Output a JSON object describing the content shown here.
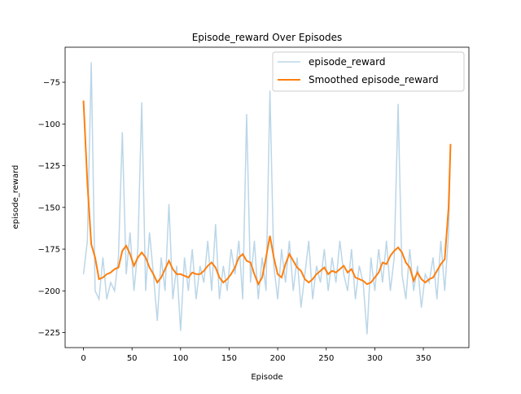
{
  "chart_data": {
    "type": "line",
    "title": "Episode_reward Over Episodes",
    "x_label": "Episode",
    "y_label": "episode_reward",
    "x": [
      0,
      4,
      8,
      12,
      16,
      20,
      24,
      28,
      32,
      36,
      40,
      44,
      48,
      52,
      56,
      60,
      64,
      68,
      72,
      76,
      80,
      84,
      88,
      92,
      96,
      100,
      104,
      108,
      112,
      116,
      120,
      124,
      128,
      132,
      136,
      140,
      144,
      148,
      152,
      156,
      160,
      164,
      168,
      172,
      176,
      180,
      184,
      188,
      192,
      196,
      200,
      204,
      208,
      212,
      216,
      220,
      224,
      228,
      232,
      236,
      240,
      244,
      248,
      252,
      256,
      260,
      264,
      268,
      272,
      276,
      280,
      284,
      288,
      292,
      296,
      300,
      304,
      308,
      312,
      316,
      320,
      324,
      328,
      332,
      336,
      340,
      344,
      348,
      352,
      356,
      360,
      364,
      368,
      372,
      376,
      378
    ],
    "series": [
      {
        "name": "episode_reward",
        "color": "#1f77b4",
        "opacity": 0.3,
        "width": 1.5,
        "values": [
          -190,
          -170,
          -63,
          -200,
          -205,
          -180,
          -205,
          -195,
          -200,
          -180,
          -105,
          -190,
          -165,
          -200,
          -175,
          -87,
          -200,
          -165,
          -190,
          -218,
          -180,
          -200,
          -148,
          -205,
          -185,
          -224,
          -180,
          -200,
          -175,
          -205,
          -185,
          -195,
          -170,
          -200,
          -160,
          -205,
          -185,
          -200,
          -175,
          -190,
          -170,
          -205,
          -94,
          -195,
          -170,
          -205,
          -180,
          -200,
          -80,
          -185,
          -205,
          -175,
          -195,
          -170,
          -200,
          -180,
          -210,
          -190,
          -170,
          -205,
          -185,
          -195,
          -175,
          -200,
          -180,
          -195,
          -170,
          -190,
          -200,
          -175,
          -205,
          -185,
          -195,
          -226,
          -180,
          -200,
          -175,
          -195,
          -170,
          -200,
          -180,
          -88,
          -190,
          -205,
          -175,
          -200,
          -185,
          -210,
          -190,
          -195,
          -180,
          -205,
          -170,
          -200,
          -165,
          -112
        ]
      },
      {
        "name": "Smoothed episode_reward",
        "color": "#ff7f0e",
        "opacity": 1,
        "width": 2,
        "values": [
          -86,
          -135,
          -172,
          -180,
          -193,
          -192,
          -190,
          -189,
          -187,
          -186,
          -176,
          -173,
          -178,
          -185,
          -180,
          -177,
          -180,
          -186,
          -190,
          -195,
          -192,
          -187,
          -182,
          -187,
          -190,
          -190,
          -191,
          -192,
          -189,
          -190,
          -190,
          -188,
          -185,
          -183,
          -186,
          -192,
          -195,
          -193,
          -190,
          -186,
          -180,
          -178,
          -182,
          -183,
          -190,
          -196,
          -192,
          -180,
          -167,
          -180,
          -190,
          -192,
          -184,
          -178,
          -182,
          -186,
          -188,
          -193,
          -195,
          -193,
          -190,
          -188,
          -186,
          -190,
          -188,
          -189,
          -187,
          -185,
          -189,
          -187,
          -192,
          -193,
          -194,
          -196,
          -195,
          -192,
          -189,
          -183,
          -184,
          -179,
          -176,
          -174,
          -177,
          -183,
          -186,
          -194,
          -189,
          -193,
          -195,
          -193,
          -192,
          -188,
          -184,
          -181,
          -150,
          -112
        ]
      }
    ],
    "xlim": [
      -18.9,
      396.9
    ],
    "ylim": [
      -234,
      -54
    ],
    "xticks": [
      0,
      50,
      100,
      150,
      200,
      250,
      300,
      350
    ],
    "yticks": [
      {
        "value": -75,
        "label": "−75"
      },
      {
        "value": -100,
        "label": "−100"
      },
      {
        "value": -125,
        "label": "−125"
      },
      {
        "value": -150,
        "label": "−150"
      },
      {
        "value": -175,
        "label": "−175"
      },
      {
        "value": -200,
        "label": "−200"
      },
      {
        "value": -225,
        "label": "−225"
      }
    ],
    "legend": "upper right"
  }
}
